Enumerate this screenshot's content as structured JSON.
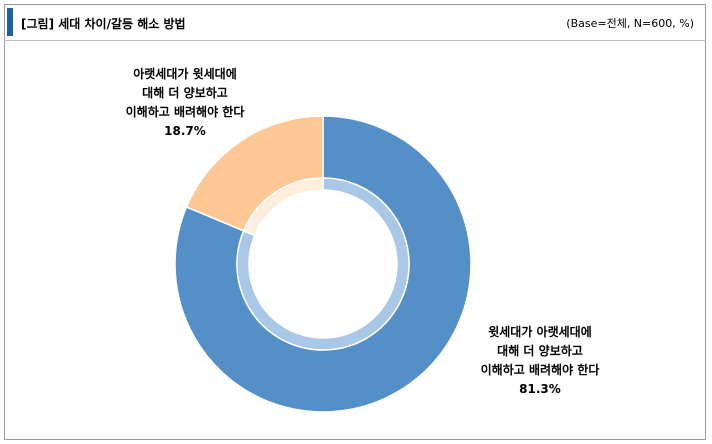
{
  "header": {
    "title": "[그림] 세대 차이/갈등 해소 방법",
    "base_note": "(Base=전체, N=600, %)"
  },
  "colors": {
    "accent": "#1f5fa6",
    "slice_main": "#5490c7",
    "slice_minor": "#fdc896",
    "inner_ring_main": "#a9c7e6",
    "inner_ring_minor": "#feeede"
  },
  "chart_data": {
    "type": "pie",
    "donut": true,
    "unit": "%",
    "slices": [
      {
        "label_lines": [
          "아랫세대가 윗세대에",
          "대해 더 양보하고",
          "이해하고 배려해야 한다"
        ],
        "value": 18.7,
        "value_label": "18.7%"
      },
      {
        "label_lines": [
          "윗세대가 아랫세대에",
          "대해 더 양보하고",
          "이해하고 배려해야 한다"
        ],
        "value": 81.3,
        "value_label": "81.3%"
      }
    ]
  }
}
